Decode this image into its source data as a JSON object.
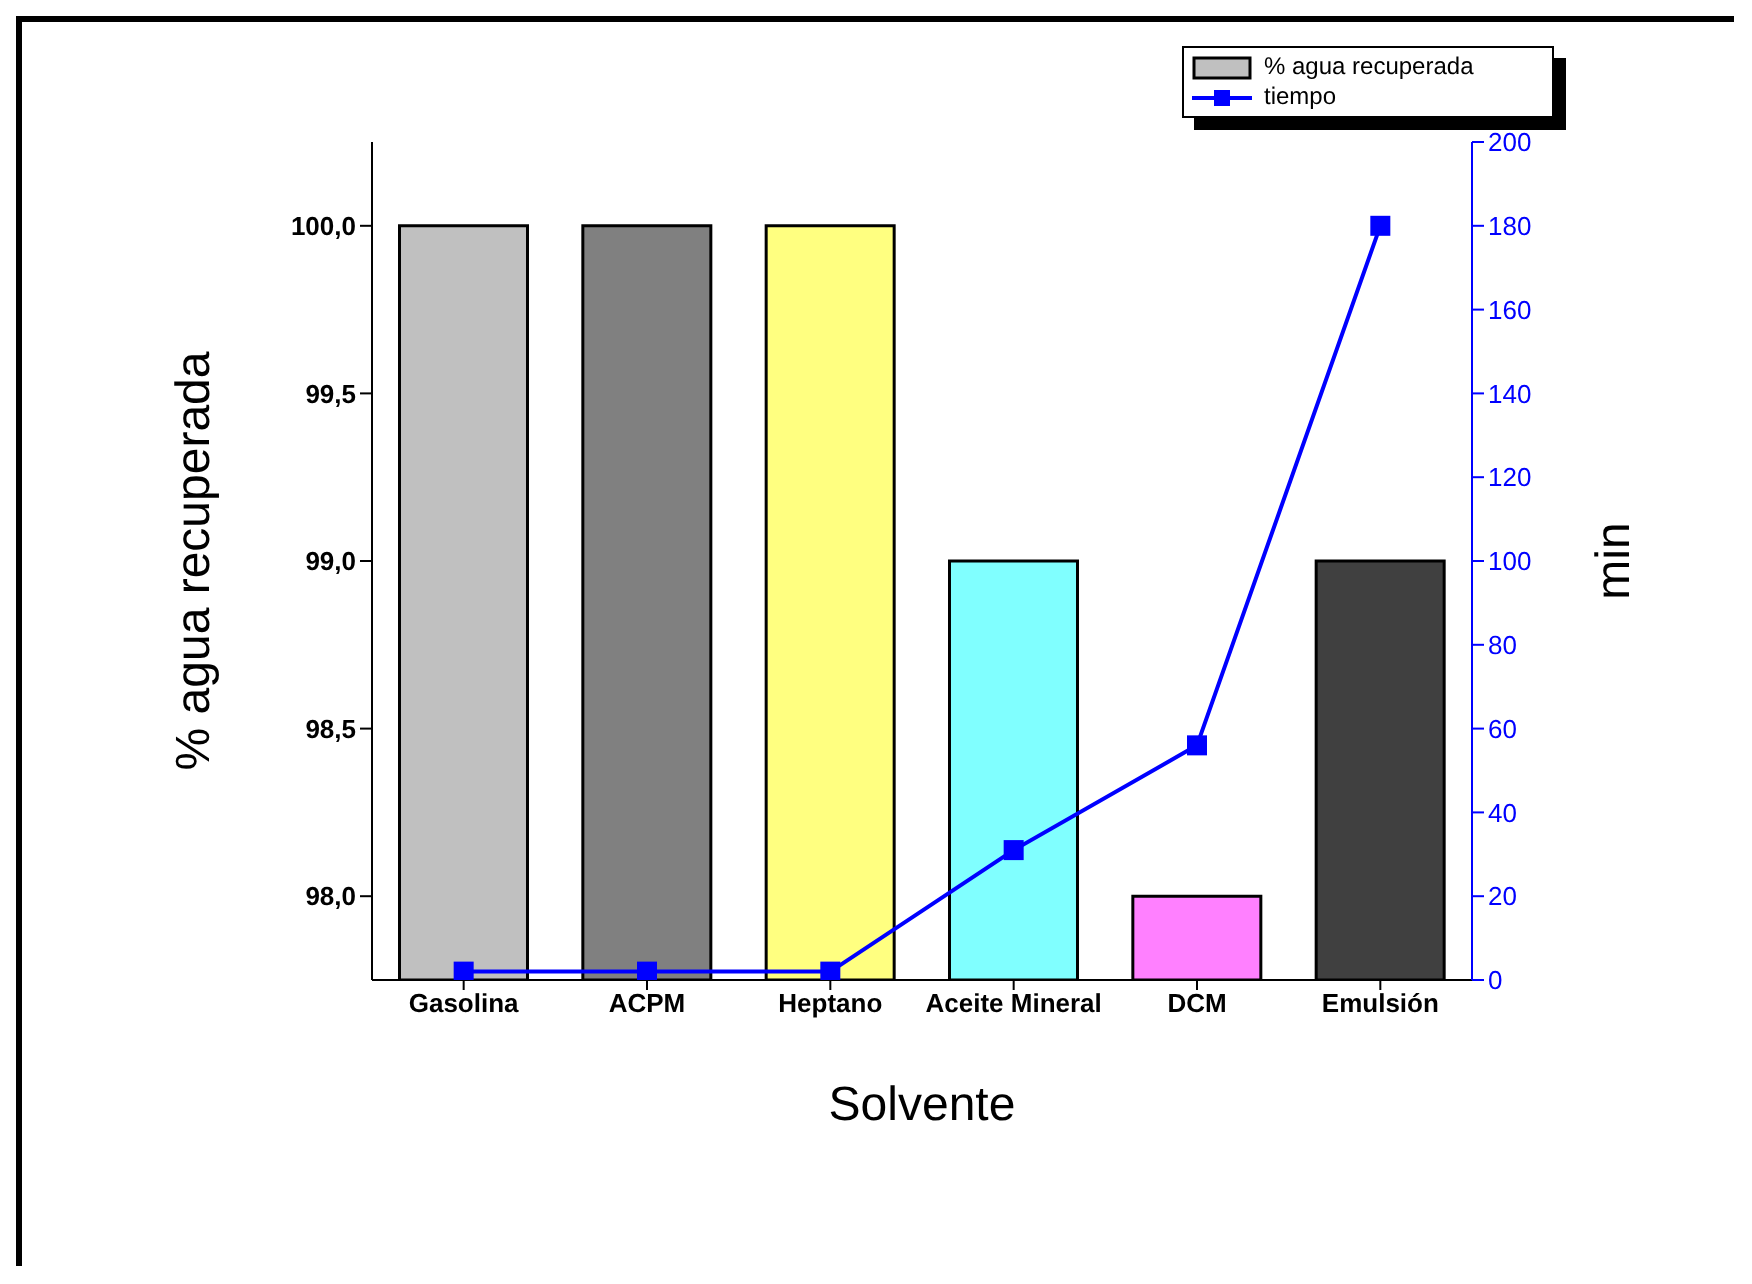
{
  "chart_data": {
    "type": "bar",
    "xlabel": "Solvente",
    "ylabel": "% agua recuperada",
    "y2label": "min",
    "categories": [
      "Gasolina",
      "ACPM",
      "Heptano",
      "Aceite Mineral",
      "DCM",
      "Emulsión"
    ],
    "series": [
      {
        "name": "% agua recuperada",
        "color": "#c0c0c0",
        "colors": [
          "#c0c0c0",
          "#808080",
          "#ffff80",
          "#80ffff",
          "#ff80ff",
          "#404040"
        ],
        "values": [
          100,
          100,
          100,
          99,
          98,
          99
        ]
      },
      {
        "name": "tiempo",
        "type": "line",
        "axis": "y2",
        "color": "#0000ff",
        "marker": "square",
        "values": [
          2,
          2,
          2,
          31,
          56,
          180
        ]
      }
    ],
    "ylim": [
      97.75,
      100.25
    ],
    "yticks": [
      {
        "value": 98,
        "label": "98,0"
      },
      {
        "value": 98.5,
        "label": "98,5"
      },
      {
        "value": 99,
        "label": "99,0"
      },
      {
        "value": 99.5,
        "label": "99,5"
      },
      {
        "value": 100,
        "label": "100,0"
      }
    ],
    "y2lim": [
      0,
      200
    ],
    "y2ticks": [
      0,
      20,
      40,
      60,
      80,
      100,
      120,
      140,
      160,
      180,
      200
    ],
    "legend": "top right",
    "grid": false
  }
}
